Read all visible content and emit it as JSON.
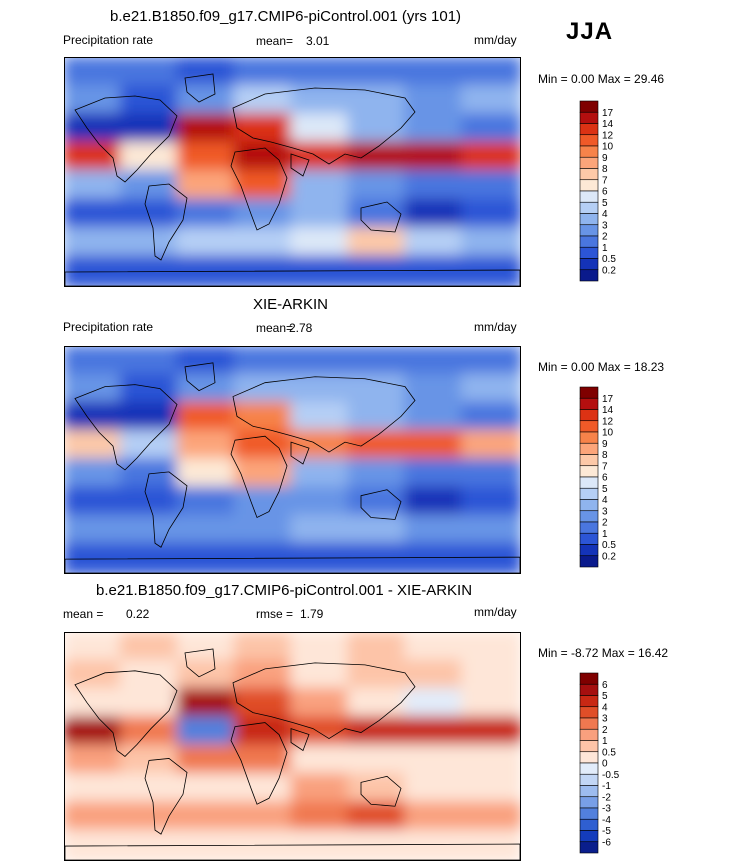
{
  "season": "JJA",
  "panels": [
    {
      "id": "model",
      "title": "b.e21.B1850.f09_g17.CMIP6-piControl.001 (yrs 101)",
      "left_label": "Precipitation rate",
      "stat_label": "mean=",
      "stat_value": "3.01",
      "stat2_label": "",
      "stat2_value": "",
      "units": "mm/day",
      "minmax": "Min =   0.00 Max =  29.46",
      "colorbar_ticks": [
        "17",
        "14",
        "12",
        "10",
        "9",
        "8",
        "7",
        "6",
        "5",
        "4",
        "3",
        "2",
        "1",
        "0.5",
        "0.2"
      ],
      "colorbar_colors": [
        "#7f0000",
        "#b40f0f",
        "#dc3214",
        "#f05a28",
        "#f7834a",
        "#fca57a",
        "#fdc9a8",
        "#fde9d6",
        "#dce8f8",
        "#b5cff5",
        "#8fb4ee",
        "#6894e6",
        "#4a76df",
        "#2c55d6",
        "#1433b8",
        "#0a1a8c"
      ]
    },
    {
      "id": "obs",
      "title": "XIE-ARKIN",
      "left_label": "Precipitation rate",
      "stat_label": "mean=",
      "stat_value": "2.78",
      "stat2_label": "",
      "stat2_value": "",
      "units": "mm/day",
      "minmax": "Min =   0.00 Max =  18.23",
      "colorbar_ticks": [
        "17",
        "14",
        "12",
        "10",
        "9",
        "8",
        "7",
        "6",
        "5",
        "4",
        "3",
        "2",
        "1",
        "0.5",
        "0.2"
      ],
      "colorbar_colors": [
        "#7f0000",
        "#b40f0f",
        "#dc3214",
        "#f05a28",
        "#f7834a",
        "#fca57a",
        "#fdc9a8",
        "#fde9d6",
        "#dce8f8",
        "#b5cff5",
        "#8fb4ee",
        "#6894e6",
        "#4a76df",
        "#2c55d6",
        "#1433b8",
        "#0a1a8c"
      ]
    },
    {
      "id": "diff",
      "title": "b.e21.B1850.f09_g17.CMIP6-piControl.001 - XIE-ARKIN",
      "left_label": "mean =",
      "stat_value_left": "0.22",
      "stat_label": "rmse =",
      "stat_value": "1.79",
      "units": "mm/day",
      "minmax": "Min =  -8.72 Max =  16.42",
      "colorbar_ticks": [
        "6",
        "5",
        "4",
        "3",
        "2",
        "1",
        "0.5",
        "0",
        "-0.5",
        "-1",
        "-2",
        "-3",
        "-4",
        "-5",
        "-6"
      ],
      "colorbar_colors": [
        "#7f0000",
        "#a50f0f",
        "#c82814",
        "#e04e28",
        "#f07850",
        "#f9a07e",
        "#fdc4a8",
        "#fee6d8",
        "#e2ecfa",
        "#c2d6f5",
        "#9dbcef",
        "#789fe7",
        "#5280dd",
        "#2f5fd1",
        "#143cbc",
        "#0a1e8c"
      ]
    }
  ],
  "chart_data": [
    {
      "type": "heatmap",
      "title": "b.e21.B1850.f09_g17.CMIP6-piControl.001 (yrs 101)",
      "variable": "Precipitation rate",
      "units": "mm/day",
      "mean": 3.01,
      "min": 0.0,
      "max": 29.46,
      "levels": [
        0.2,
        0.5,
        1,
        2,
        3,
        4,
        5,
        6,
        7,
        8,
        9,
        10,
        12,
        14,
        17
      ],
      "grid": {
        "lat": [
          75,
          45,
          20,
          8,
          -5,
          -20,
          -45,
          -75
        ],
        "lon": [
          0,
          45,
          90,
          135,
          180,
          225,
          270,
          315
        ],
        "values": [
          [
            1.0,
            1.2,
            0.8,
            1.5,
            1.0,
            1.2,
            1.5,
            1.0
          ],
          [
            2.0,
            0.5,
            2.5,
            4.0,
            3.0,
            3.5,
            2.5,
            3.0
          ],
          [
            0.3,
            0.2,
            14.0,
            12.0,
            5.0,
            3.0,
            2.0,
            1.0
          ],
          [
            12.0,
            6.0,
            10.0,
            14.0,
            12.0,
            15.0,
            14.0,
            12.0
          ],
          [
            3.0,
            2.0,
            8.0,
            10.0,
            3.0,
            2.0,
            1.5,
            1.0
          ],
          [
            0.5,
            0.8,
            1.5,
            2.0,
            3.0,
            1.5,
            0.3,
            0.5
          ],
          [
            3.0,
            3.0,
            4.0,
            4.0,
            5.0,
            7.0,
            4.0,
            3.0
          ],
          [
            0.5,
            0.5,
            0.5,
            0.5,
            0.5,
            0.5,
            0.5,
            0.5
          ]
        ]
      }
    },
    {
      "type": "heatmap",
      "title": "XIE-ARKIN",
      "variable": "Precipitation rate",
      "units": "mm/day",
      "mean": 2.78,
      "min": 0.0,
      "max": 18.23,
      "levels": [
        0.2,
        0.5,
        1,
        2,
        3,
        4,
        5,
        6,
        7,
        8,
        9,
        10,
        12,
        14,
        17
      ],
      "grid": {
        "lat": [
          75,
          45,
          20,
          8,
          -5,
          -20,
          -45,
          -75
        ],
        "lon": [
          0,
          45,
          90,
          135,
          180,
          225,
          270,
          315
        ],
        "values": [
          [
            1.0,
            1.0,
            0.8,
            1.2,
            1.0,
            1.0,
            1.2,
            1.0
          ],
          [
            2.0,
            0.5,
            2.0,
            3.5,
            3.0,
            3.0,
            2.0,
            3.0
          ],
          [
            0.3,
            0.2,
            10.0,
            9.0,
            4.0,
            3.0,
            2.5,
            1.0
          ],
          [
            7.0,
            4.0,
            8.0,
            10.0,
            9.0,
            11.0,
            10.0,
            8.0
          ],
          [
            2.0,
            1.5,
            6.0,
            8.0,
            3.0,
            2.0,
            1.5,
            1.0
          ],
          [
            0.5,
            0.8,
            1.5,
            2.0,
            2.0,
            1.0,
            0.3,
            0.5
          ],
          [
            2.0,
            2.0,
            2.5,
            2.5,
            3.0,
            3.5,
            2.5,
            2.0
          ],
          [
            0.5,
            0.5,
            0.5,
            0.5,
            0.5,
            0.5,
            0.5,
            0.5
          ]
        ]
      }
    },
    {
      "type": "heatmap",
      "title": "b.e21.B1850.f09_g17.CMIP6-piControl.001 - XIE-ARKIN",
      "variable": "",
      "units": "mm/day",
      "mean": 0.22,
      "rmse": 1.79,
      "min": -8.72,
      "max": 16.42,
      "levels": [
        -6,
        -5,
        -4,
        -3,
        -2,
        -1,
        -0.5,
        0,
        0.5,
        1,
        2,
        3,
        4,
        5,
        6
      ],
      "grid": {
        "lat": [
          75,
          45,
          20,
          8,
          -5,
          -20,
          -45,
          -75
        ],
        "lon": [
          0,
          45,
          90,
          135,
          180,
          225,
          270,
          315
        ],
        "values": [
          [
            0.3,
            0.5,
            0.2,
            0.6,
            0.3,
            0.5,
            0.4,
            0.2
          ],
          [
            0.5,
            0.0,
            0.8,
            1.0,
            0.4,
            0.8,
            0.6,
            0.3
          ],
          [
            0.0,
            0.0,
            5.0,
            3.0,
            1.0,
            0.0,
            -0.5,
            0.0
          ],
          [
            5.0,
            2.0,
            -4.0,
            4.0,
            3.0,
            4.0,
            4.0,
            4.0
          ],
          [
            1.0,
            0.5,
            2.0,
            2.0,
            0.0,
            0.0,
            0.0,
            0.0
          ],
          [
            0.0,
            0.0,
            0.0,
            0.0,
            1.0,
            0.5,
            0.0,
            0.0
          ],
          [
            1.0,
            1.0,
            1.5,
            1.5,
            2.0,
            3.5,
            1.5,
            1.0
          ],
          [
            0.0,
            0.0,
            0.0,
            0.0,
            0.0,
            0.0,
            0.0,
            0.0
          ]
        ]
      }
    }
  ]
}
